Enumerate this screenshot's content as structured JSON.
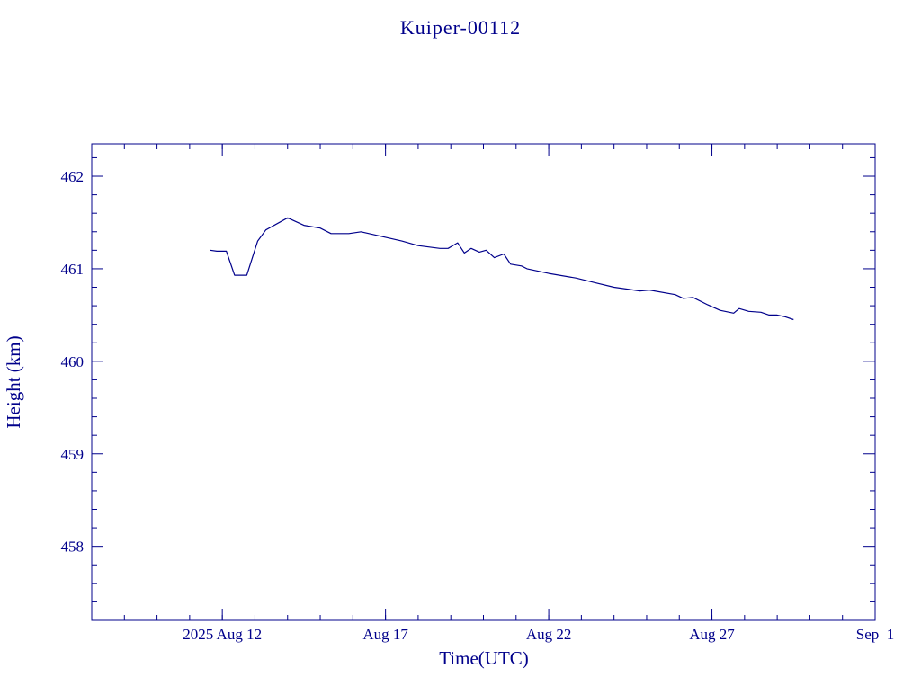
{
  "colors": {
    "ink": "#00008b",
    "background": "#ffffff"
  },
  "chart_data": {
    "type": "line",
    "title": "Kuiper-00112",
    "xlabel": "Time(UTC)",
    "ylabel": "Height (km)",
    "x_unit": "date (UTC, 2025)",
    "xlim": [
      "2025-08-08 00:00",
      "2025-09-01 00:00"
    ],
    "ylim": [
      457.2,
      462.35
    ],
    "x_tick_labels": [
      {
        "date": "2025-08-12",
        "label": "2025 Aug 12"
      },
      {
        "date": "2025-08-17",
        "label": "Aug 17"
      },
      {
        "date": "2025-08-22",
        "label": "Aug 22"
      },
      {
        "date": "2025-08-27",
        "label": "Aug 27"
      },
      {
        "date": "2025-09-01",
        "label": "Sep  1"
      }
    ],
    "y_ticks": [
      458,
      459,
      460,
      461,
      462
    ],
    "grid": false,
    "legend": "none",
    "series": [
      {
        "x": [
          "2025-08-11 15:00",
          "2025-08-11 20:00",
          "2025-08-12 03:00",
          "2025-08-12 09:00",
          "2025-08-12 18:00",
          "2025-08-13 02:00",
          "2025-08-13 08:00",
          "2025-08-14 00:00",
          "2025-08-14 12:00",
          "2025-08-15 00:00",
          "2025-08-15 08:00",
          "2025-08-15 21:00",
          "2025-08-16 06:00",
          "2025-08-17 00:00",
          "2025-08-17 12:00",
          "2025-08-18 00:00",
          "2025-08-18 16:00",
          "2025-08-18 22:00",
          "2025-08-19 05:00",
          "2025-08-19 10:00",
          "2025-08-19 15:00",
          "2025-08-19 21:00",
          "2025-08-20 02:00",
          "2025-08-20 08:00",
          "2025-08-20 15:00",
          "2025-08-20 20:00",
          "2025-08-21 04:00",
          "2025-08-21 08:00",
          "2025-08-22 00:00",
          "2025-08-22 20:00",
          "2025-08-23 10:00",
          "2025-08-24 00:00",
          "2025-08-24 10:00",
          "2025-08-24 19:00",
          "2025-08-25 02:00",
          "2025-08-25 21:00",
          "2025-08-26 03:00",
          "2025-08-26 10:00",
          "2025-08-26 21:00",
          "2025-08-27 06:00",
          "2025-08-27 16:00",
          "2025-08-27 20:00",
          "2025-08-28 03:00",
          "2025-08-28 12:00",
          "2025-08-28 18:00",
          "2025-08-29 00:00",
          "2025-08-29 06:00",
          "2025-08-29 12:00"
        ],
        "y": [
          461.2,
          461.19,
          461.19,
          460.93,
          460.93,
          461.3,
          461.42,
          461.55,
          461.47,
          461.44,
          461.38,
          461.38,
          461.4,
          461.34,
          461.3,
          461.25,
          461.22,
          461.22,
          461.28,
          461.17,
          461.22,
          461.18,
          461.2,
          461.12,
          461.16,
          461.05,
          461.03,
          461.0,
          460.95,
          460.9,
          460.85,
          460.8,
          460.78,
          460.76,
          460.77,
          460.72,
          460.68,
          460.69,
          460.61,
          460.55,
          460.52,
          460.57,
          460.54,
          460.53,
          460.5,
          460.5,
          460.48,
          460.45
        ]
      }
    ]
  }
}
